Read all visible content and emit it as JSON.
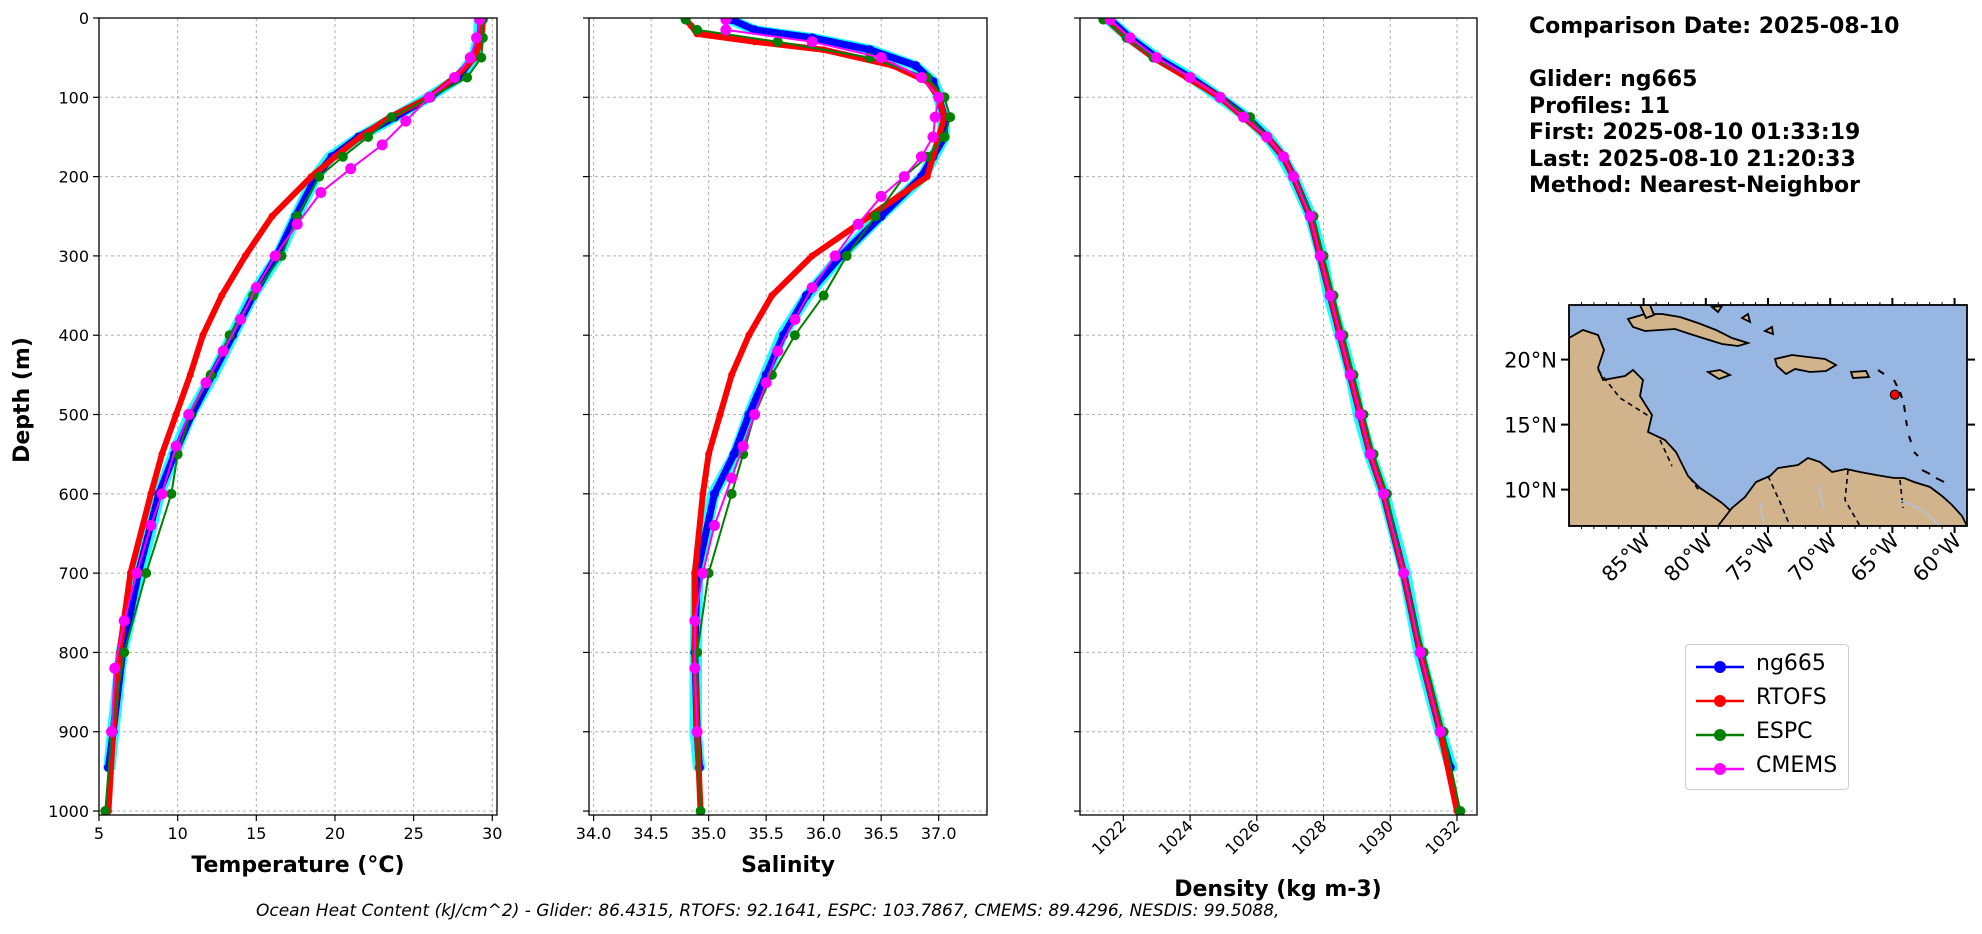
{
  "info": {
    "comparison_date": "Comparison Date: 2025-08-10",
    "glider": "Glider: ng665",
    "profiles": "Profiles: 11",
    "first": "First: 2025-08-10 01:33:19",
    "last": "Last: 2025-08-10 21:20:33",
    "method": "Method: Nearest-Neighbor"
  },
  "footer": "Ocean Heat Content (kJ/cm^2) - Glider: 86.4315,  RTOFS: 92.1641,  ESPC: 103.7867,  CMEMS: 89.4296,  NESDIS: 99.5088,",
  "colors": {
    "glider": "#0000ff",
    "glider_spread": "#00ffff",
    "rtofs": "#ff0000",
    "espc": "#008000",
    "cmems": "#ff00ff",
    "land": "#d2b48c",
    "ocean": "#97b6e1"
  },
  "legend": [
    {
      "name": "ng665",
      "color": "#0000ff"
    },
    {
      "name": "RTOFS",
      "color": "#ff0000"
    },
    {
      "name": "ESPC",
      "color": "#008000"
    },
    {
      "name": "CMEMS",
      "color": "#ff00ff"
    }
  ],
  "chart_data": [
    {
      "type": "line",
      "xlabel": "Temperature (°C)",
      "ylabel": "Depth (m)",
      "xlim": [
        5,
        30.3
      ],
      "ylim": [
        1005,
        0
      ],
      "xticks": [
        "5",
        "10",
        "15",
        "20",
        "25",
        "30"
      ],
      "yticks": [
        "0",
        "100",
        "200",
        "300",
        "400",
        "500",
        "600",
        "700",
        "800",
        "900",
        "1000"
      ],
      "grid": true,
      "series": [
        {
          "name": "ng665",
          "depth": [
            2,
            25,
            50,
            75,
            100,
            125,
            150,
            175,
            200,
            250,
            300,
            350,
            400,
            450,
            500,
            550,
            600,
            700,
            800,
            900,
            945
          ],
          "values": [
            29.3,
            29.2,
            28.8,
            27.8,
            26.0,
            23.8,
            21.5,
            19.8,
            18.8,
            17.5,
            16.3,
            14.8,
            13.5,
            12.2,
            10.9,
            9.8,
            8.8,
            7.5,
            6.5,
            5.9,
            5.6
          ]
        },
        {
          "name": "RTOFS",
          "depth": [
            2,
            25,
            50,
            75,
            100,
            125,
            150,
            175,
            200,
            250,
            300,
            350,
            400,
            450,
            500,
            550,
            600,
            700,
            800,
            900,
            1000
          ],
          "values": [
            29.4,
            29.3,
            28.9,
            27.6,
            26.0,
            23.5,
            21.6,
            20.0,
            18.5,
            16.0,
            14.3,
            12.8,
            11.6,
            10.8,
            9.9,
            9.0,
            8.3,
            7.0,
            6.3,
            5.9,
            5.6
          ]
        },
        {
          "name": "ESPC",
          "depth": [
            2,
            25,
            50,
            75,
            100,
            125,
            150,
            175,
            200,
            250,
            300,
            350,
            400,
            450,
            500,
            550,
            600,
            700,
            800,
            900,
            1000
          ],
          "values": [
            29.4,
            29.4,
            29.3,
            28.4,
            26.1,
            23.6,
            22.1,
            20.5,
            19.0,
            17.6,
            16.6,
            14.8,
            13.3,
            12.1,
            10.8,
            10.0,
            9.6,
            8.0,
            6.6,
            5.8,
            5.4
          ]
        },
        {
          "name": "CMEMS",
          "depth": [
            2,
            25,
            50,
            75,
            100,
            130,
            160,
            190,
            220,
            260,
            300,
            340,
            380,
            420,
            460,
            500,
            540,
            600,
            640,
            700,
            760,
            820,
            900
          ],
          "values": [
            29.2,
            29.0,
            28.6,
            27.6,
            26.0,
            24.5,
            23.0,
            21.0,
            19.1,
            17.6,
            16.2,
            15.0,
            14.0,
            12.9,
            11.8,
            10.7,
            9.9,
            9.0,
            8.3,
            7.4,
            6.6,
            6.0,
            5.8
          ]
        }
      ]
    },
    {
      "type": "line",
      "xlabel": "Salinity",
      "ylabel": "",
      "xlim": [
        33.96,
        37.42
      ],
      "ylim": [
        1005,
        0
      ],
      "xticks": [
        "34.0",
        "34.5",
        "35.0",
        "35.5",
        "36.0",
        "36.5",
        "37.0"
      ],
      "grid": true,
      "series": [
        {
          "name": "ng665",
          "depth": [
            2,
            15,
            25,
            40,
            60,
            80,
            100,
            125,
            150,
            175,
            200,
            250,
            300,
            350,
            400,
            450,
            500,
            550,
            600,
            700,
            800,
            900,
            945
          ],
          "values": [
            35.2,
            35.4,
            35.9,
            36.4,
            36.8,
            36.95,
            37.0,
            37.05,
            37.05,
            36.95,
            36.85,
            36.5,
            36.15,
            35.85,
            35.65,
            35.5,
            35.35,
            35.22,
            35.05,
            34.9,
            34.88,
            34.9,
            34.92
          ]
        },
        {
          "name": "RTOFS",
          "depth": [
            2,
            10,
            20,
            30,
            40,
            60,
            80,
            100,
            125,
            150,
            175,
            200,
            250,
            300,
            350,
            400,
            450,
            500,
            550,
            600,
            700,
            800,
            900,
            1000
          ],
          "values": [
            34.8,
            34.85,
            34.9,
            35.4,
            36.0,
            36.6,
            36.9,
            37.0,
            37.05,
            37.0,
            36.95,
            36.9,
            36.4,
            35.9,
            35.55,
            35.35,
            35.2,
            35.1,
            35.0,
            34.95,
            34.88,
            34.88,
            34.9,
            34.93
          ]
        },
        {
          "name": "ESPC",
          "depth": [
            2,
            15,
            30,
            50,
            75,
            100,
            125,
            150,
            175,
            200,
            250,
            300,
            350,
            400,
            450,
            500,
            550,
            600,
            700,
            800,
            900,
            1000
          ],
          "values": [
            34.8,
            34.9,
            35.6,
            36.4,
            36.9,
            37.05,
            37.1,
            37.05,
            36.9,
            36.7,
            36.45,
            36.2,
            36.0,
            35.75,
            35.55,
            35.4,
            35.3,
            35.2,
            35.0,
            34.9,
            34.9,
            34.93
          ]
        },
        {
          "name": "CMEMS",
          "depth": [
            2,
            15,
            30,
            50,
            75,
            100,
            125,
            150,
            175,
            200,
            225,
            260,
            300,
            340,
            380,
            420,
            460,
            500,
            540,
            580,
            640,
            700,
            760,
            820,
            900
          ],
          "values": [
            35.15,
            35.15,
            35.9,
            36.5,
            36.85,
            37.0,
            36.97,
            36.95,
            36.85,
            36.7,
            36.5,
            36.3,
            36.1,
            35.9,
            35.75,
            35.6,
            35.5,
            35.4,
            35.3,
            35.2,
            35.05,
            34.95,
            34.88,
            34.88,
            34.9
          ]
        }
      ]
    },
    {
      "type": "line",
      "xlabel": "Density (kg m-3)",
      "ylabel": "",
      "xlim": [
        1020.7,
        1032.6
      ],
      "ylim": [
        1005,
        0
      ],
      "xticks": [
        "1022",
        "1024",
        "1026",
        "1028",
        "1030",
        "1032"
      ],
      "grid": true,
      "series": [
        {
          "name": "ng665",
          "depth": [
            2,
            25,
            50,
            75,
            100,
            125,
            150,
            175,
            200,
            250,
            300,
            350,
            400,
            450,
            500,
            550,
            600,
            700,
            800,
            900,
            945
          ],
          "values": [
            1021.6,
            1022.2,
            1023.0,
            1024.0,
            1024.9,
            1025.7,
            1026.3,
            1026.8,
            1027.1,
            1027.6,
            1027.9,
            1028.2,
            1028.5,
            1028.8,
            1029.1,
            1029.4,
            1029.8,
            1030.4,
            1030.9,
            1031.5,
            1031.8
          ]
        },
        {
          "name": "RTOFS",
          "depth": [
            2,
            25,
            50,
            75,
            100,
            125,
            150,
            175,
            200,
            250,
            300,
            350,
            400,
            450,
            500,
            550,
            600,
            700,
            800,
            900,
            1000
          ],
          "values": [
            1021.5,
            1022.1,
            1022.9,
            1023.9,
            1024.9,
            1025.6,
            1026.3,
            1026.8,
            1027.1,
            1027.6,
            1027.9,
            1028.2,
            1028.5,
            1028.8,
            1029.1,
            1029.4,
            1029.8,
            1030.4,
            1030.9,
            1031.5,
            1032.0
          ]
        },
        {
          "name": "ESPC",
          "depth": [
            2,
            25,
            50,
            75,
            100,
            125,
            150,
            175,
            200,
            250,
            300,
            350,
            400,
            450,
            500,
            550,
            600,
            700,
            800,
            900,
            1000
          ],
          "values": [
            1021.4,
            1022.1,
            1022.9,
            1024.0,
            1024.9,
            1025.8,
            1026.3,
            1026.8,
            1027.1,
            1027.7,
            1028.0,
            1028.3,
            1028.6,
            1028.9,
            1029.2,
            1029.5,
            1029.9,
            1030.4,
            1031.0,
            1031.6,
            1032.1
          ]
        },
        {
          "name": "CMEMS",
          "depth": [
            2,
            25,
            50,
            75,
            100,
            125,
            150,
            175,
            200,
            250,
            300,
            350,
            400,
            450,
            500,
            550,
            600,
            700,
            800,
            900
          ],
          "values": [
            1021.6,
            1022.2,
            1023.0,
            1024.0,
            1024.9,
            1025.6,
            1026.3,
            1026.8,
            1027.1,
            1027.6,
            1027.9,
            1028.2,
            1028.5,
            1028.8,
            1029.1,
            1029.4,
            1029.8,
            1030.4,
            1030.9,
            1031.5
          ]
        }
      ]
    },
    {
      "type": "map",
      "lon_range": [
        -91,
        -59
      ],
      "lat_range": [
        7.2,
        24.2
      ],
      "xticks": [
        "85°W",
        "80°W",
        "75°W",
        "70°W",
        "65°W",
        "60°W"
      ],
      "yticks": [
        "20°N",
        "15°N",
        "10°N"
      ],
      "glider_position": {
        "lon": -64.8,
        "lat": 17.3
      }
    }
  ]
}
